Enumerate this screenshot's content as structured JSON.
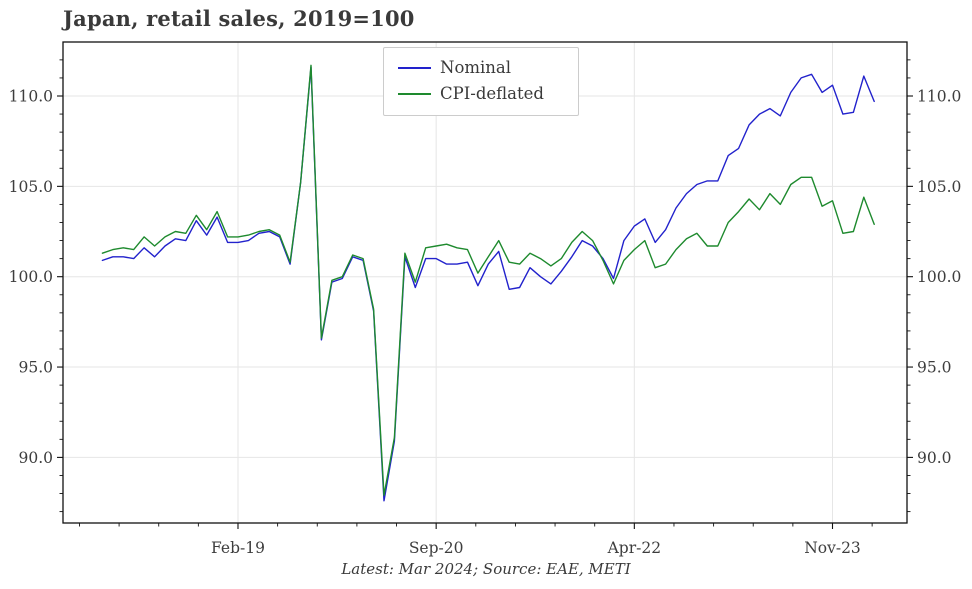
{
  "page": {
    "background": "#ffffff"
  },
  "chart": {
    "title": "Japan, retail sales, 2019=100",
    "caption": "Latest: Mar 2024; Source: EAE, METI",
    "legend": [
      {
        "label": "Nominal",
        "color": "#2222cc"
      },
      {
        "label": "CPI-deflated",
        "color": "#1e8a2e"
      }
    ]
  },
  "chart_data": {
    "type": "line",
    "title": "Japan, retail sales, 2019=100",
    "x_unit": "month",
    "x_start": "Jan-2018",
    "x_end": "Mar-2024",
    "n_points": 75,
    "x_tick_labels": [
      "Feb-19",
      "Sep-20",
      "Apr-22",
      "Nov-23"
    ],
    "x_tick_month_indices": [
      13,
      32,
      51,
      70
    ],
    "y_tick_labels": [
      "90.0",
      "95.0",
      "100.0",
      "105.0",
      "110.0"
    ],
    "y_tick_values": [
      90,
      95,
      100,
      105,
      110
    ],
    "y_minor_step": 1,
    "ylim": [
      86.4,
      113.0
    ],
    "grid": true,
    "legend_position": "upper center-left",
    "source_note": "Latest: Mar 2024; Source: EAE, METI",
    "series": [
      {
        "name": "Nominal",
        "color": "#2222cc",
        "values": [
          100.9,
          101.1,
          101.1,
          101.0,
          101.6,
          101.1,
          101.7,
          102.1,
          102.0,
          103.1,
          102.3,
          103.3,
          101.9,
          101.9,
          102.0,
          102.4,
          102.5,
          102.2,
          100.7,
          105.2,
          111.6,
          96.5,
          99.7,
          99.9,
          101.1,
          100.9,
          98.1,
          87.6,
          90.9,
          101.1,
          99.4,
          101.0,
          101.0,
          100.7,
          100.7,
          100.8,
          99.5,
          100.7,
          101.4,
          99.3,
          99.4,
          100.5,
          100.0,
          99.6,
          100.3,
          101.1,
          102.0,
          101.7,
          101.0,
          99.9,
          102.0,
          102.8,
          103.2,
          101.9,
          102.6,
          103.8,
          104.6,
          105.1,
          105.3,
          105.3,
          106.7,
          107.1,
          108.4,
          109.0,
          109.3,
          108.9,
          110.2,
          111.0,
          111.2,
          110.2,
          110.6,
          109.0,
          109.1,
          111.1,
          109.7
        ]
      },
      {
        "name": "CPI-deflated",
        "color": "#1e8a2e",
        "values": [
          101.3,
          101.5,
          101.6,
          101.5,
          102.2,
          101.7,
          102.2,
          102.5,
          102.4,
          103.4,
          102.6,
          103.6,
          102.2,
          102.2,
          102.3,
          102.5,
          102.6,
          102.3,
          100.8,
          105.2,
          111.7,
          96.6,
          99.8,
          100.0,
          101.2,
          101.0,
          98.2,
          87.9,
          91.1,
          101.3,
          99.7,
          101.6,
          101.7,
          101.8,
          101.6,
          101.5,
          100.2,
          101.1,
          102.0,
          100.8,
          100.7,
          101.3,
          101.0,
          100.6,
          101.0,
          101.9,
          102.5,
          102.0,
          100.9,
          99.6,
          100.9,
          101.5,
          102.0,
          100.5,
          100.7,
          101.5,
          102.1,
          102.4,
          101.7,
          101.7,
          103.0,
          103.6,
          104.3,
          103.7,
          104.6,
          104.0,
          105.1,
          105.5,
          105.5,
          103.9,
          104.2,
          102.4,
          102.5,
          104.4,
          102.9
        ]
      }
    ]
  }
}
